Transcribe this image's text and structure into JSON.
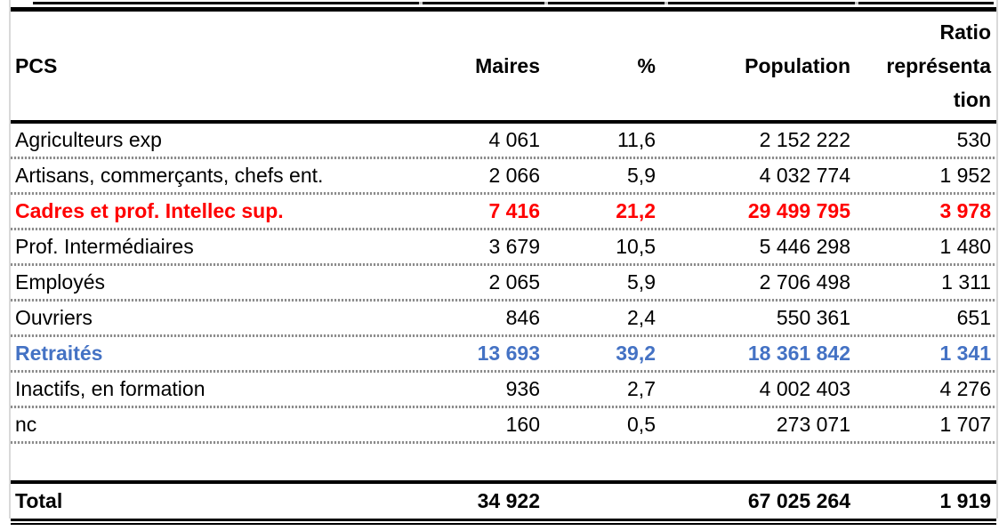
{
  "table": {
    "columns": {
      "pcs": "PCS",
      "maires": "Maires",
      "pct": "%",
      "population": "Population",
      "ratio_lines": [
        "Ratio",
        "représenta",
        "tion"
      ]
    },
    "rows": [
      {
        "pcs": "Agriculteurs exp",
        "maires": "4 061",
        "pct": "11,6",
        "population": "2 152 222",
        "ratio": "530"
      },
      {
        "pcs": "Artisans, commerçants, chefs ent.",
        "maires": "2 066",
        "pct": "5,9",
        "population": "4 032 774",
        "ratio": "1 952"
      },
      {
        "pcs": "Cadres et prof. Intellec sup.",
        "maires": "7 416",
        "pct": "21,2",
        "population": "29 499 795",
        "ratio": "3 978"
      },
      {
        "pcs": "Prof. Intermédiaires",
        "maires": "3 679",
        "pct": "10,5",
        "population": "5 446 298",
        "ratio": "1 480"
      },
      {
        "pcs": "Employés",
        "maires": "2 065",
        "pct": "5,9",
        "population": "2 706 498",
        "ratio": "1 311"
      },
      {
        "pcs": "Ouvriers",
        "maires": "846",
        "pct": "2,4",
        "population": "550 361",
        "ratio": "651"
      },
      {
        "pcs": "Retraités",
        "maires": "13 693",
        "pct": "39,2",
        "population": "18 361 842",
        "ratio": "1 341"
      },
      {
        "pcs": "Inactifs, en formation",
        "maires": "936",
        "pct": "2,7",
        "population": "4 002 403",
        "ratio": "4 276"
      },
      {
        "pcs": "nc",
        "maires": "160",
        "pct": "0,5",
        "population": "273 071",
        "ratio": "1 707"
      }
    ],
    "total": {
      "pcs": "Total",
      "maires": "34 922",
      "pct": "",
      "population": "67 025 264",
      "ratio": "1 919"
    },
    "colors": {
      "highlight_red": "#FF0000",
      "highlight_blue": "#4472C4",
      "dotted_grid": "#8c8c8c",
      "border_black": "#000000",
      "edge_gray": "#d9d9d9"
    }
  }
}
